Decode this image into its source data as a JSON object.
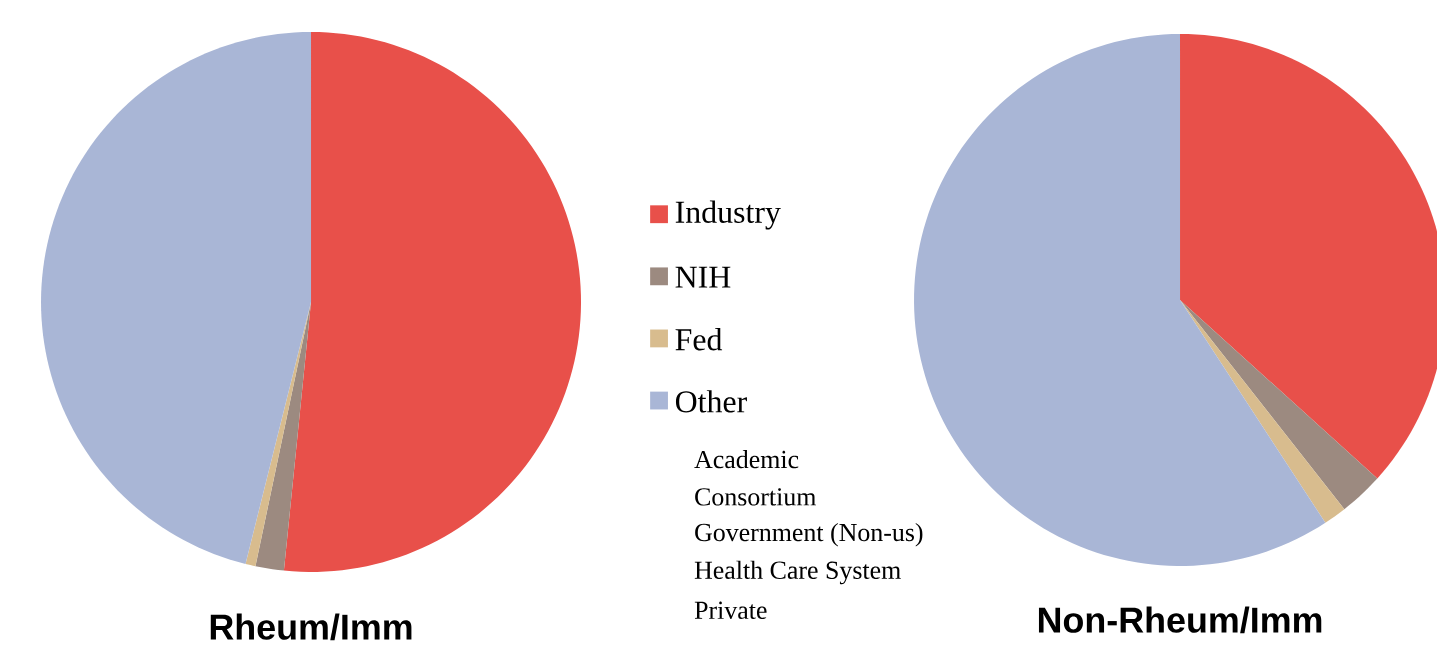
{
  "chart_data": [
    {
      "type": "pie",
      "title": "Rheum/Imm",
      "categories": [
        "Industry",
        "NIH",
        "Fed",
        "Other"
      ],
      "values": [
        51.6,
        1.7,
        0.6,
        46.1
      ],
      "colors": [
        "#e8504a",
        "#9c8a80",
        "#d8bc8e",
        "#a9b6d6"
      ],
      "legend": "right",
      "annotations": [
        "Academic",
        "Consortium",
        "Government (Non-us)",
        "Health Care System",
        "Private"
      ]
    },
    {
      "type": "pie",
      "title": "Non-Rheum/Imm",
      "categories": [
        null,
        null,
        null,
        null
      ],
      "values": [
        36.7,
        2.7,
        1.4,
        59.2
      ],
      "colors": [
        "#e8504a",
        "#9c8a80",
        "#d8bc8e",
        "#a9b6d6"
      ]
    }
  ]
}
